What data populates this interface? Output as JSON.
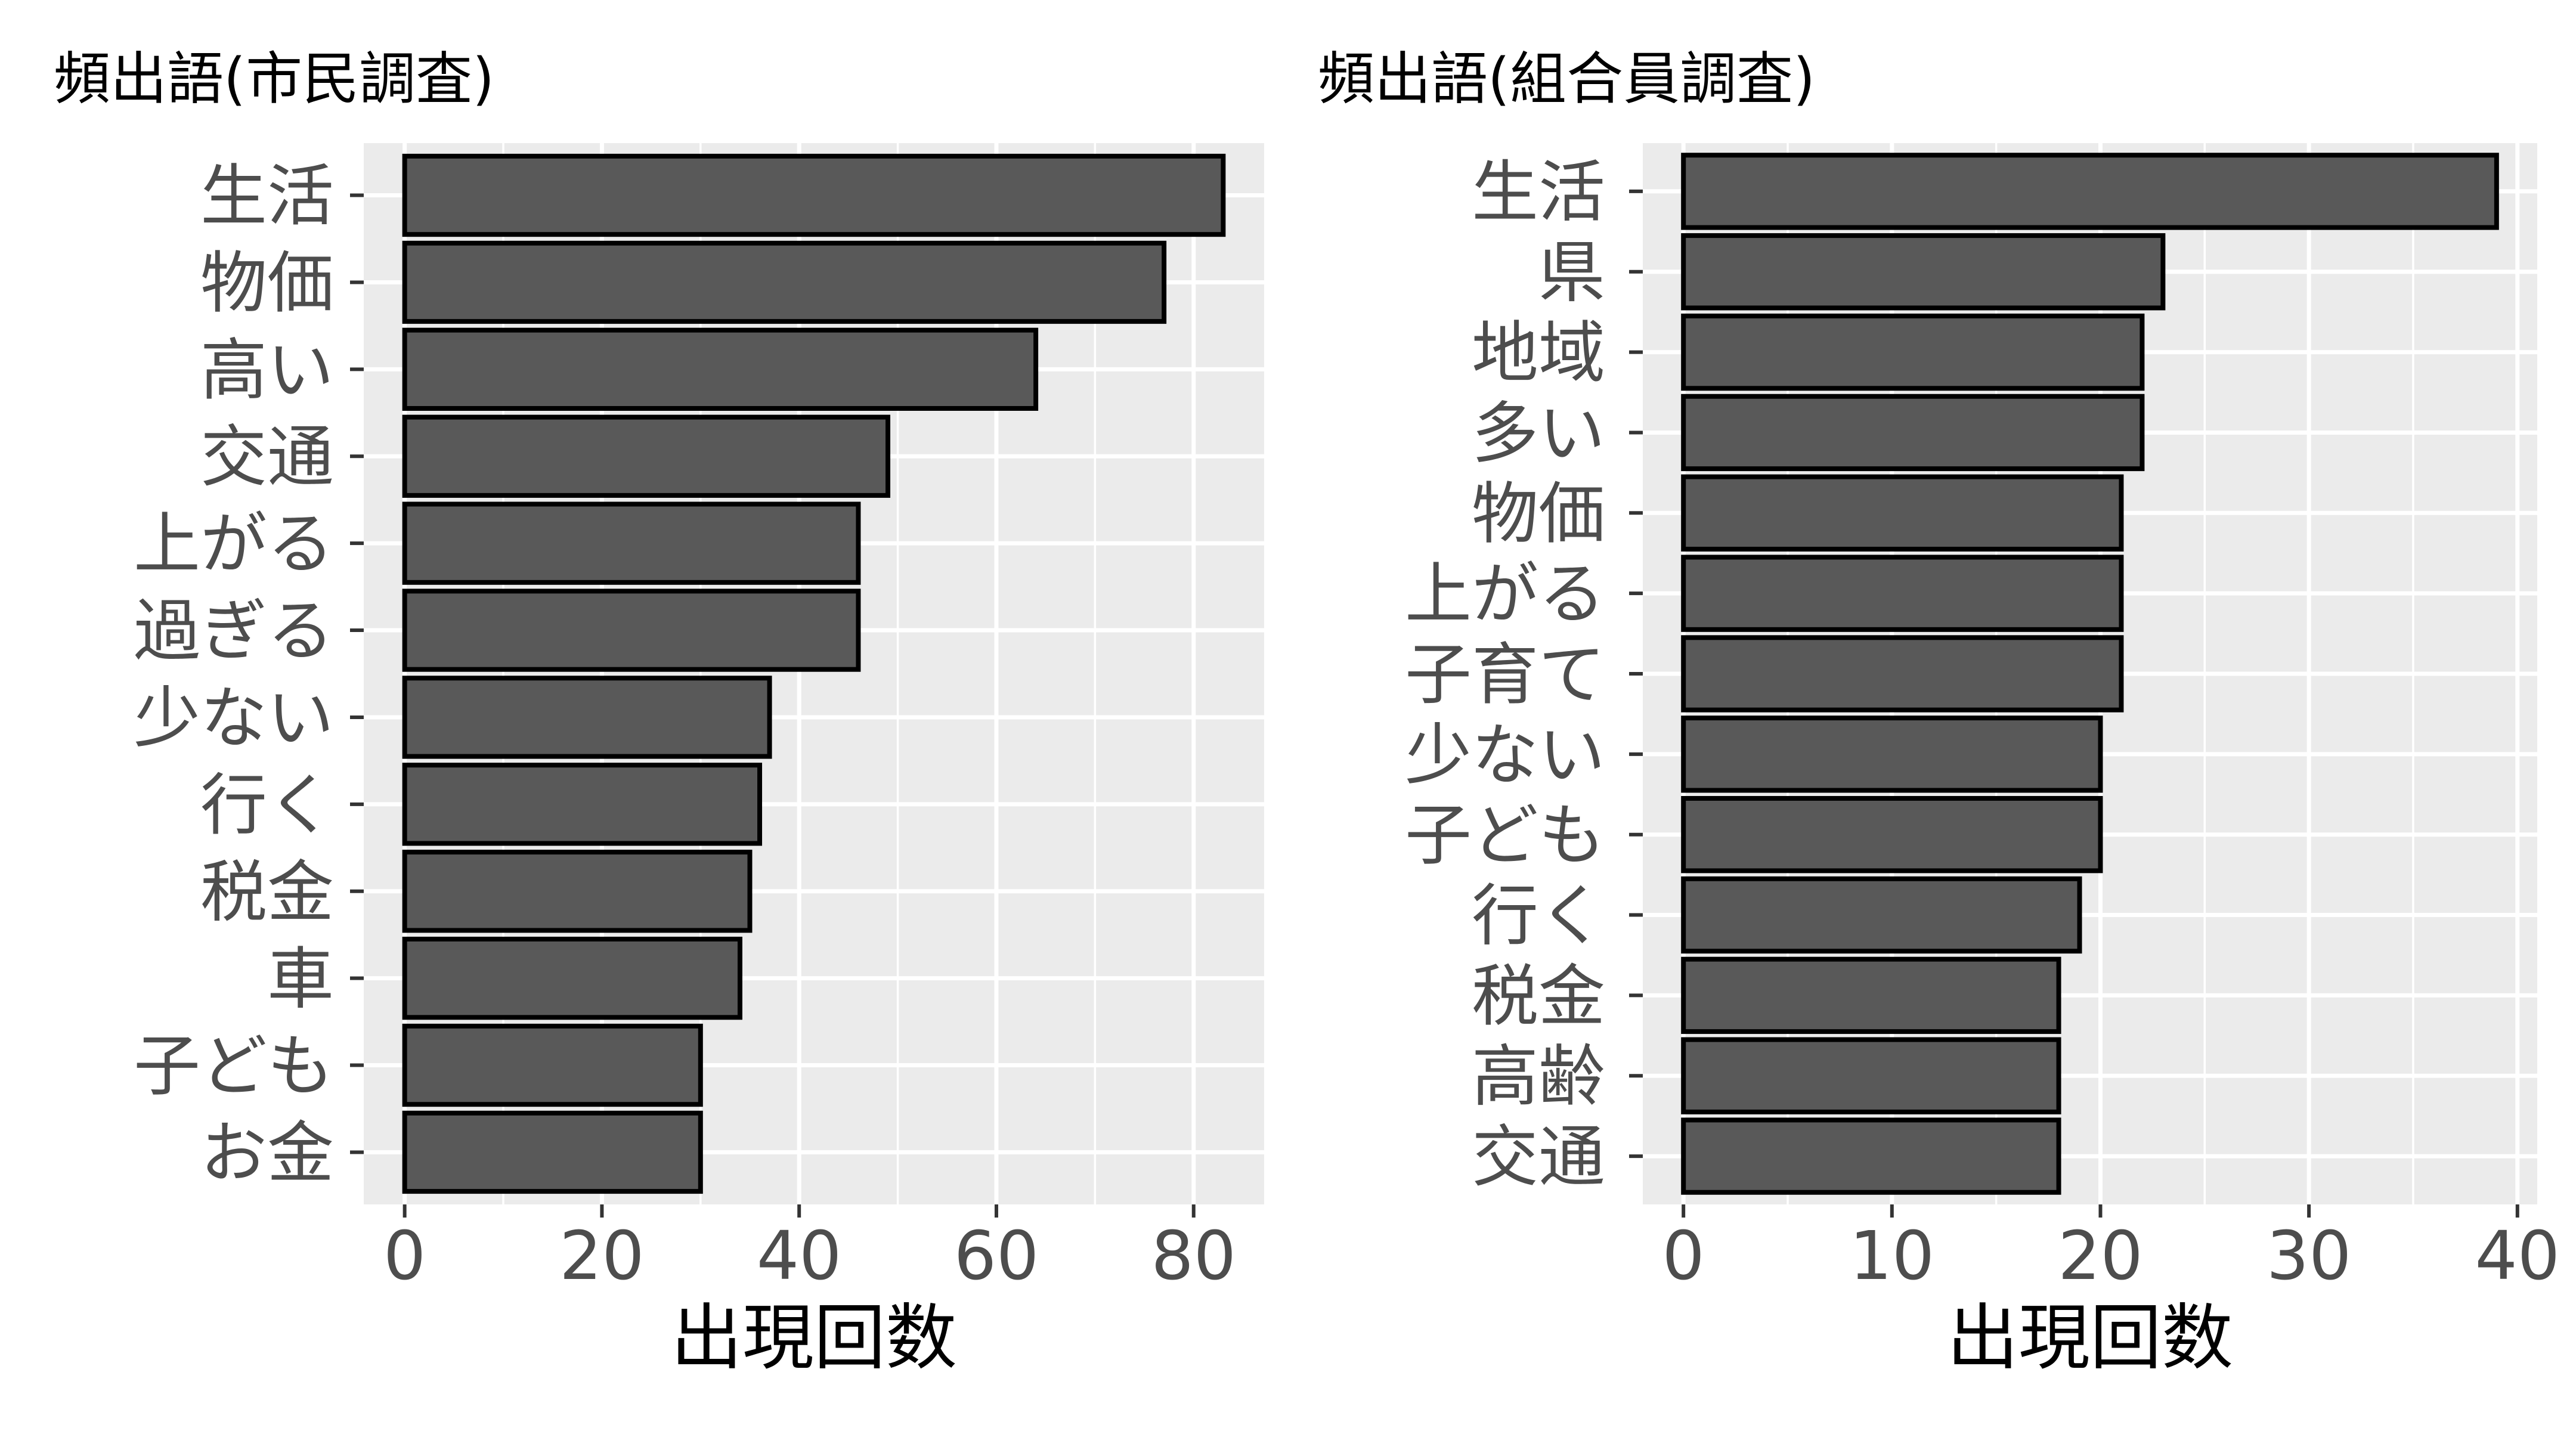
{
  "chart_data": [
    {
      "type": "bar",
      "orientation": "horizontal",
      "title": "頻出語(市民調査)",
      "xlabel": "出現回数",
      "ylabel": "",
      "categories": [
        "生活",
        "物価",
        "高い",
        "交通",
        "上がる",
        "過ぎる",
        "少ない",
        "行く",
        "税金",
        "車",
        "子ども",
        "お金"
      ],
      "values": [
        83,
        77,
        64,
        49,
        46,
        46,
        37,
        36,
        35,
        34,
        30,
        30
      ],
      "xlim": [
        -4.15,
        87.15
      ],
      "xticks": [
        0,
        20,
        40,
        60,
        80
      ],
      "xtick_labels": [
        "0",
        "20",
        "40",
        "60",
        "80"
      ],
      "grid": true,
      "bar_color": "#595959",
      "bar_edge_color": "#000000",
      "panel_color": "#ebebeb"
    },
    {
      "type": "bar",
      "orientation": "horizontal",
      "title": "頻出語(組合員調査)",
      "xlabel": "出現回数",
      "ylabel": "",
      "categories": [
        "生活",
        "県",
        "地域",
        "多い",
        "物価",
        "上がる",
        "子育て",
        "少ない",
        "子ども",
        "行く",
        "税金",
        "高齢",
        "交通"
      ],
      "values": [
        39,
        23,
        22,
        22,
        21,
        21,
        21,
        20,
        20,
        19,
        18,
        18,
        18
      ],
      "xlim": [
        -1.95,
        40.95
      ],
      "xticks": [
        0,
        10,
        20,
        30,
        40
      ],
      "xtick_labels": [
        "0",
        "10",
        "20",
        "30",
        "40"
      ],
      "grid": true,
      "bar_color": "#595959",
      "bar_edge_color": "#000000",
      "panel_color": "#ebebeb"
    }
  ]
}
